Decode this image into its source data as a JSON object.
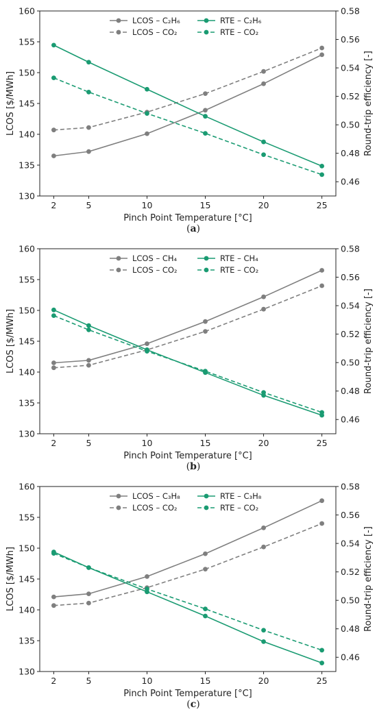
{
  "chart_data": [
    {
      "type": "line",
      "caption_letter": "a",
      "xlabel": "Pinch Point Temperature [°C]",
      "ylabel": "LCOS [$/MWh]",
      "y2label": "Round-trip efficiency [-]",
      "x": [
        2,
        5,
        10,
        15,
        20,
        25
      ],
      "xticks": [
        2,
        5,
        10,
        15,
        20,
        25
      ],
      "ylim": [
        130,
        160
      ],
      "yticks": [
        130,
        135,
        140,
        145,
        150,
        155,
        160
      ],
      "y2lim": [
        0.45,
        0.58
      ],
      "y2ticks": [
        0.46,
        0.48,
        0.5,
        0.52,
        0.54,
        0.56,
        0.58
      ],
      "legend_placement": "top-center",
      "series": [
        {
          "name": "LCOS – C₂H₆",
          "axis": "left",
          "style": "solid",
          "color": "#7f7f7f",
          "values": [
            136.5,
            137.2,
            140.1,
            143.9,
            148.2,
            152.9
          ]
        },
        {
          "name": "LCOS – CO₂",
          "axis": "left",
          "style": "dashed",
          "color": "#7f7f7f",
          "values": [
            140.7,
            141.1,
            143.6,
            146.6,
            150.2,
            154.0
          ]
        },
        {
          "name": "RTE – C₂H₆",
          "axis": "right",
          "style": "solid",
          "color": "#1a9b72",
          "values": [
            0.556,
            0.544,
            0.525,
            0.506,
            0.488,
            0.471
          ]
        },
        {
          "name": "RTE – CO₂",
          "axis": "right",
          "style": "dashed",
          "color": "#1a9b72",
          "values": [
            0.533,
            0.523,
            0.508,
            0.494,
            0.479,
            0.465
          ]
        }
      ]
    },
    {
      "type": "line",
      "caption_letter": "b",
      "xlabel": "Pinch Point Temperature [°C]",
      "ylabel": "LCOS [$/MWh]",
      "y2label": "Round-trip efficiency [-]",
      "x": [
        2,
        5,
        10,
        15,
        20,
        25
      ],
      "xticks": [
        2,
        5,
        10,
        15,
        20,
        25
      ],
      "ylim": [
        130,
        160
      ],
      "yticks": [
        130,
        135,
        140,
        145,
        150,
        155,
        160
      ],
      "y2lim": [
        0.45,
        0.58
      ],
      "y2ticks": [
        0.46,
        0.48,
        0.5,
        0.52,
        0.54,
        0.56,
        0.58
      ],
      "legend_placement": "top-center",
      "series": [
        {
          "name": "LCOS – CH₄",
          "axis": "left",
          "style": "solid",
          "color": "#7f7f7f",
          "values": [
            141.5,
            141.9,
            144.6,
            148.2,
            152.2,
            156.5
          ]
        },
        {
          "name": "LCOS – CO₂",
          "axis": "left",
          "style": "dashed",
          "color": "#7f7f7f",
          "values": [
            140.7,
            141.1,
            143.6,
            146.6,
            150.2,
            154.0
          ]
        },
        {
          "name": "RTE – CH₄",
          "axis": "right",
          "style": "solid",
          "color": "#1a9b72",
          "values": [
            0.537,
            0.526,
            0.509,
            0.493,
            0.477,
            0.463
          ]
        },
        {
          "name": "RTE – CO₂",
          "axis": "right",
          "style": "dashed",
          "color": "#1a9b72",
          "values": [
            0.533,
            0.523,
            0.508,
            0.494,
            0.479,
            0.465
          ]
        }
      ]
    },
    {
      "type": "line",
      "caption_letter": "c",
      "xlabel": "Pinch Point Temperature [°C]",
      "ylabel": "LCOS [$/MWh]",
      "y2label": "Round-trip efficiency [-]",
      "x": [
        2,
        5,
        10,
        15,
        20,
        25
      ],
      "xticks": [
        2,
        5,
        10,
        15,
        20,
        25
      ],
      "ylim": [
        130,
        160
      ],
      "yticks": [
        130,
        135,
        140,
        145,
        150,
        155,
        160
      ],
      "y2lim": [
        0.45,
        0.58
      ],
      "y2ticks": [
        0.46,
        0.48,
        0.5,
        0.52,
        0.54,
        0.56,
        0.58
      ],
      "legend_placement": "top-center",
      "series": [
        {
          "name": "LCOS – C₃H₈",
          "axis": "left",
          "style": "solid",
          "color": "#7f7f7f",
          "values": [
            142.1,
            142.6,
            145.4,
            149.1,
            153.3,
            157.7
          ]
        },
        {
          "name": "LCOS – CO₂",
          "axis": "left",
          "style": "dashed",
          "color": "#7f7f7f",
          "values": [
            140.7,
            141.1,
            143.6,
            146.6,
            150.2,
            154.0
          ]
        },
        {
          "name": "RTE – C₃H₈",
          "axis": "right",
          "style": "solid",
          "color": "#1a9b72",
          "values": [
            0.534,
            0.523,
            0.506,
            0.489,
            0.471,
            0.456
          ]
        },
        {
          "name": "RTE – CO₂",
          "axis": "right",
          "style": "dashed",
          "color": "#1a9b72",
          "values": [
            0.533,
            0.523,
            0.508,
            0.494,
            0.479,
            0.465
          ]
        }
      ]
    }
  ]
}
